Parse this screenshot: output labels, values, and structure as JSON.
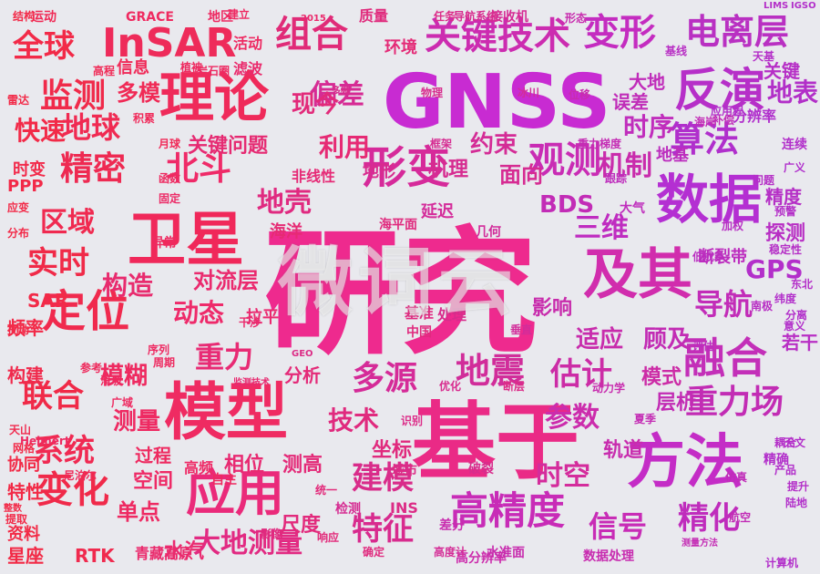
{
  "words": [
    {
      "text": "研究",
      "size": 150,
      "color": "#ee2a8e"
    },
    {
      "text": "GNSS",
      "size": 82,
      "color": "#c82bd2"
    },
    {
      "text": "基于",
      "size": 92,
      "color": "#ea2a86"
    },
    {
      "text": "卫星",
      "size": 64,
      "color": "#f0285a"
    },
    {
      "text": "模型",
      "size": 68,
      "color": "#ef2b62"
    },
    {
      "text": "理论",
      "size": 60,
      "color": "#ef2a5a"
    },
    {
      "text": "数据",
      "size": 58,
      "color": "#b42fd2"
    },
    {
      "text": "方法",
      "size": 64,
      "color": "#c42cc6"
    },
    {
      "text": "及其",
      "size": 60,
      "color": "#d12dad"
    },
    {
      "text": "应用",
      "size": 54,
      "color": "#ea2a7a"
    },
    {
      "text": "InSAR",
      "size": 44,
      "color": "#ee2b5a"
    },
    {
      "text": "形变",
      "size": 48,
      "color": "#d62a9a"
    },
    {
      "text": "反演",
      "size": 50,
      "color": "#b62fc8"
    },
    {
      "text": "融合",
      "size": 46,
      "color": "#c32fb8"
    },
    {
      "text": "定位",
      "size": 48,
      "color": "#f02a4e"
    },
    {
      "text": "高精度",
      "size": 42,
      "color": "#c82cb7"
    },
    {
      "text": "关键技术",
      "size": 40,
      "color": "#cc2cb0"
    },
    {
      "text": "组合",
      "size": 40,
      "color": "#e02b78"
    },
    {
      "text": "变形",
      "size": 40,
      "color": "#c42cc0"
    },
    {
      "text": "电离层",
      "size": 38,
      "color": "#b930c2"
    },
    {
      "text": "观测",
      "size": 40,
      "color": "#c92cb4"
    },
    {
      "text": "算法",
      "size": 38,
      "color": "#b02fcc"
    },
    {
      "text": "精密",
      "size": 36,
      "color": "#ee2a52"
    },
    {
      "text": "北斗",
      "size": 36,
      "color": "#ef2a68"
    },
    {
      "text": "监测",
      "size": 36,
      "color": "#f02a4a"
    },
    {
      "text": "地球",
      "size": 32,
      "color": "#f02a52"
    },
    {
      "text": "全球",
      "size": 34,
      "color": "#f22a48"
    },
    {
      "text": "变化",
      "size": 40,
      "color": "#f02a4a"
    },
    {
      "text": "重力场",
      "size": 36,
      "color": "#c22cb4"
    },
    {
      "text": "地震",
      "size": 38,
      "color": "#d12d9a"
    },
    {
      "text": "多源",
      "size": 36,
      "color": "#d52b98"
    },
    {
      "text": "估计",
      "size": 34,
      "color": "#cc2ca6"
    },
    {
      "text": "建模",
      "size": 34,
      "color": "#d92c8a"
    },
    {
      "text": "特征",
      "size": 34,
      "color": "#d82b8e"
    },
    {
      "text": "精化",
      "size": 34,
      "color": "#bf2cbc"
    },
    {
      "text": "信号",
      "size": 32,
      "color": "#c82cb6"
    },
    {
      "text": "系统",
      "size": 34,
      "color": "#f02a52"
    },
    {
      "text": "联合",
      "size": 34,
      "color": "#f02a48"
    },
    {
      "text": "实时",
      "size": 34,
      "color": "#f02a48"
    },
    {
      "text": "区域",
      "size": 30,
      "color": "#f02a50"
    },
    {
      "text": "快速",
      "size": 28,
      "color": "#f22a48"
    },
    {
      "text": "重力",
      "size": 32,
      "color": "#e82b74"
    },
    {
      "text": "大地测量",
      "size": 30,
      "color": "#e22a82"
    },
    {
      "text": "三维",
      "size": 30,
      "color": "#bf2cc0"
    },
    {
      "text": "导航",
      "size": 32,
      "color": "#c22cb8"
    },
    {
      "text": "时空",
      "size": 30,
      "color": "#d42c9c"
    },
    {
      "text": "参数",
      "size": 30,
      "color": "#cc2cac"
    },
    {
      "text": "机制",
      "size": 30,
      "color": "#c92cac"
    },
    {
      "text": "构造",
      "size": 28,
      "color": "#e82b6e"
    },
    {
      "text": "动态",
      "size": 28,
      "color": "#ee2a6a"
    },
    {
      "text": "偏差",
      "size": 30,
      "color": "#d62b94"
    },
    {
      "text": "地表",
      "size": 28,
      "color": "#b22fc8"
    },
    {
      "text": "时序",
      "size": 28,
      "color": "#c02dbc"
    },
    {
      "text": "地壳",
      "size": 30,
      "color": "#e02a80"
    },
    {
      "text": "模糊",
      "size": 26,
      "color": "#ee2a60"
    },
    {
      "text": "技术",
      "size": 28,
      "color": "#e02a7e"
    },
    {
      "text": "测量",
      "size": 26,
      "color": "#ee2a62"
    },
    {
      "text": "利用",
      "size": 28,
      "color": "#e62a74"
    },
    {
      "text": "现今",
      "size": 26,
      "color": "#e22a7a"
    },
    {
      "text": "GPS",
      "size": 28,
      "color": "#b32fca"
    },
    {
      "text": "BDS",
      "size": 26,
      "color": "#c22cb6"
    },
    {
      "text": "适应",
      "size": 26,
      "color": "#c82cac"
    },
    {
      "text": "顾及",
      "size": 26,
      "color": "#c22cb4"
    },
    {
      "text": "约束",
      "size": 26,
      "color": "#d42c96"
    },
    {
      "text": "面向",
      "size": 24,
      "color": "#d62b92"
    },
    {
      "text": "机理",
      "size": 22,
      "color": "#d62c90"
    },
    {
      "text": "对流层",
      "size": 24,
      "color": "#ea2a6e"
    },
    {
      "text": "关键问题",
      "size": 22,
      "color": "#e62a72"
    },
    {
      "text": "多模",
      "size": 24,
      "color": "#f02a56"
    },
    {
      "text": "单点",
      "size": 24,
      "color": "#ee2a62"
    },
    {
      "text": "空间",
      "size": 22,
      "color": "#ee2a66"
    },
    {
      "text": "过程",
      "size": 20,
      "color": "#ee2a60"
    },
    {
      "text": "水汽",
      "size": 22,
      "color": "#ea2a70"
    },
    {
      "text": "相位",
      "size": 22,
      "color": "#e82a72"
    },
    {
      "text": "测高",
      "size": 22,
      "color": "#e42a78"
    },
    {
      "text": "坐标",
      "size": 22,
      "color": "#e02a7e"
    },
    {
      "text": "轨道",
      "size": 22,
      "color": "#c82cae"
    },
    {
      "text": "层析",
      "size": 22,
      "color": "#c22cb4"
    },
    {
      "text": "模式",
      "size": 22,
      "color": "#cc2ca6"
    },
    {
      "text": "探测",
      "size": 22,
      "color": "#b82fc4"
    },
    {
      "text": "精度",
      "size": 20,
      "color": "#b52fc6"
    },
    {
      "text": "RTK",
      "size": 20,
      "color": "#f02a4e"
    },
    {
      "text": "SAR",
      "size": 20,
      "color": "#f22a48"
    },
    {
      "text": "频率",
      "size": 20,
      "color": "#f22a48"
    },
    {
      "text": "构建",
      "size": 20,
      "color": "#f02a4c"
    },
    {
      "text": "特性",
      "size": 20,
      "color": "#f22a46"
    },
    {
      "text": "协同",
      "size": 18,
      "color": "#f22a46"
    },
    {
      "text": "星座",
      "size": 20,
      "color": "#f22a46"
    },
    {
      "text": "资料",
      "size": 18,
      "color": "#f22a46"
    },
    {
      "text": "尺度",
      "size": 22,
      "color": "#e22a7c"
    },
    {
      "text": "影响",
      "size": 22,
      "color": "#c82cac"
    },
    {
      "text": "若干",
      "size": 20,
      "color": "#b82fc4"
    },
    {
      "text": "拉平",
      "size": 18,
      "color": "#ea2a70"
    },
    {
      "text": "环境",
      "size": 18,
      "color": "#e42a76"
    },
    {
      "text": "信息",
      "size": 18,
      "color": "#f02a58"
    },
    {
      "text": "时变",
      "size": 18,
      "color": "#f22a4a"
    },
    {
      "text": "PPP",
      "size": 18,
      "color": "#f22a48"
    },
    {
      "text": "分析",
      "size": 20,
      "color": "#e42a78"
    },
    {
      "text": "活动",
      "size": 16,
      "color": "#ee2a62"
    },
    {
      "text": "滤波",
      "size": 16,
      "color": "#ea2a6c"
    },
    {
      "text": "高频",
      "size": 16,
      "color": "#ee2a66"
    },
    {
      "text": "自主",
      "size": 14,
      "color": "#ee2a60"
    },
    {
      "text": "青藏高原",
      "size": 16,
      "color": "#ea2a6c"
    },
    {
      "text": "误差",
      "size": 20,
      "color": "#c02db8"
    },
    {
      "text": "大地",
      "size": 20,
      "color": "#c02cba"
    },
    {
      "text": "分辨率",
      "size": 16,
      "color": "#b02fcc"
    },
    {
      "text": "非线性",
      "size": 16,
      "color": "#e62a76"
    },
    {
      "text": "海洋",
      "size": 18,
      "color": "#e62a74"
    },
    {
      "text": "延迟",
      "size": 18,
      "color": "#d42c9a"
    },
    {
      "text": "断裂带",
      "size": 18,
      "color": "#bc2cbe"
    },
    {
      "text": "高分辨率",
      "size": 14,
      "color": "#cc2cac"
    },
    {
      "text": "数据处理",
      "size": 14,
      "color": "#c82cb0"
    },
    {
      "text": "地形",
      "size": 18,
      "color": "#d82c8e"
    },
    {
      "text": "检测",
      "size": 14,
      "color": "#d62c92"
    },
    {
      "text": "破裂",
      "size": 14,
      "color": "#d82c8c"
    },
    {
      "text": "城市",
      "size": 14,
      "color": "#dc2c86"
    },
    {
      "text": "差分",
      "size": 14,
      "color": "#c82cae"
    },
    {
      "text": "海平面",
      "size": 14,
      "color": "#e02a7e"
    },
    {
      "text": "几何",
      "size": 14,
      "color": "#d22c9a"
    },
    {
      "text": "中国",
      "size": 14,
      "color": "#e02a7e"
    },
    {
      "text": "基准",
      "size": 16,
      "color": "#e02a80"
    },
    {
      "text": "处理",
      "size": 16,
      "color": "#d82c8c"
    },
    {
      "text": "连续",
      "size": 14,
      "color": "#b22fca"
    },
    {
      "text": "地基",
      "size": 18,
      "color": "#bc2dbe"
    },
    {
      "text": "关键",
      "size": 20,
      "color": "#b62fc6"
    },
    {
      "text": "GRACE",
      "size": 14,
      "color": "#ef2a60"
    },
    {
      "text": "运动",
      "size": 14,
      "color": "#f02a56"
    },
    {
      "text": "地区",
      "size": 14,
      "color": "#ee2a62"
    },
    {
      "text": "建立",
      "size": 12,
      "color": "#ee2a62"
    },
    {
      "text": "质量",
      "size": 16,
      "color": "#e02a7c"
    },
    {
      "text": "接收机",
      "size": 14,
      "color": "#d62b94"
    },
    {
      "text": "导航系统",
      "size": 12,
      "color": "#d82c8e"
    },
    {
      "text": "任务",
      "size": 12,
      "color": "#dc2c88"
    },
    {
      "text": "形态",
      "size": 12,
      "color": "#c82cae"
    },
    {
      "text": "基线",
      "size": 12,
      "color": "#b82fc4"
    },
    {
      "text": "天基",
      "size": 12,
      "color": "#b42fc8"
    },
    {
      "text": "应用程",
      "size": 12,
      "color": "#b22fca"
    },
    {
      "text": "高程",
      "size": 12,
      "color": "#f02a56"
    },
    {
      "text": "结构",
      "size": 12,
      "color": "#f22a48"
    },
    {
      "text": "函数",
      "size": 12,
      "color": "#ee2a60"
    },
    {
      "text": "固定",
      "size": 12,
      "color": "#ec2a66"
    },
    {
      "text": "月球",
      "size": 12,
      "color": "#f02a58"
    },
    {
      "text": "积累",
      "size": 12,
      "color": "#f02a5a"
    },
    {
      "text": "植被",
      "size": 12,
      "color": "#ee2a60"
    },
    {
      "text": "岩石圈",
      "size": 12,
      "color": "#ee2a62"
    },
    {
      "text": "物理",
      "size": 12,
      "color": "#d82c8e"
    },
    {
      "text": "冰川",
      "size": 12,
      "color": "#d22c9a"
    },
    {
      "text": "位移",
      "size": 12,
      "color": "#c82cae"
    },
    {
      "text": "重力梯度",
      "size": 12,
      "color": "#c42cb4"
    },
    {
      "text": "跟踪",
      "size": 12,
      "color": "#be2dbc"
    },
    {
      "text": "问题",
      "size": 12,
      "color": "#b52fc6"
    },
    {
      "text": "广义",
      "size": 12,
      "color": "#b02fcc"
    },
    {
      "text": "框架",
      "size": 12,
      "color": "#d62c92"
    },
    {
      "text": "海岸",
      "size": 12,
      "color": "#c22cb6"
    },
    {
      "text": "补偿",
      "size": 12,
      "color": "#c02db8"
    },
    {
      "text": "大气",
      "size": 14,
      "color": "#bf2dbc"
    },
    {
      "text": "预警",
      "size": 12,
      "color": "#b42fc8"
    },
    {
      "text": "精确",
      "size": 14,
      "color": "#b22fca"
    },
    {
      "text": "产品",
      "size": 12,
      "color": "#b22fca"
    },
    {
      "text": "天文",
      "size": 12,
      "color": "#b22fca"
    },
    {
      "text": "耦合",
      "size": 12,
      "color": "#b42fc8"
    },
    {
      "text": "提升",
      "size": 12,
      "color": "#b42fc8"
    },
    {
      "text": "陆地",
      "size": 12,
      "color": "#b22fca"
    },
    {
      "text": "计算机",
      "size": 12,
      "color": "#b22fca"
    },
    {
      "text": "航空",
      "size": 12,
      "color": "#c22cb6"
    },
    {
      "text": "测量方法",
      "size": 10,
      "color": "#c42cb4"
    },
    {
      "text": "水准面",
      "size": 14,
      "color": "#c82cae"
    },
    {
      "text": "高度计",
      "size": 12,
      "color": "#d42c96"
    },
    {
      "text": "确定",
      "size": 12,
      "color": "#e02a7e"
    },
    {
      "text": "响应",
      "size": 12,
      "color": "#e22a7a"
    },
    {
      "text": "影像",
      "size": 12,
      "color": "#e02a7e"
    },
    {
      "text": "统一",
      "size": 12,
      "color": "#e22a7a"
    },
    {
      "text": "Helmert",
      "size": 12,
      "color": "#ee2a60"
    },
    {
      "text": "网格",
      "size": 12,
      "color": "#f22a48"
    },
    {
      "text": "整数",
      "size": 10,
      "color": "#f22a48"
    },
    {
      "text": "提取",
      "size": 12,
      "color": "#f22a48"
    },
    {
      "text": "天山",
      "size": 12,
      "color": "#f02a4e"
    },
    {
      "text": "周期",
      "size": 12,
      "color": "#ee2a60"
    },
    {
      "text": "异常",
      "size": 14,
      "color": "#ee2a60"
    },
    {
      "text": "序列",
      "size": 12,
      "color": "#ee2a62"
    },
    {
      "text": "监测技术",
      "size": 10,
      "color": "#e82a70"
    },
    {
      "text": "干涉",
      "size": 12,
      "color": "#ea2a6c"
    },
    {
      "text": "加权",
      "size": 12,
      "color": "#b82fc4"
    },
    {
      "text": "低成本",
      "size": 12,
      "color": "#ba2ec0"
    },
    {
      "text": "稳定性",
      "size": 12,
      "color": "#b52fc6"
    },
    {
      "text": "滑坡",
      "size": 12,
      "color": "#ee2a60"
    },
    {
      "text": "应变",
      "size": 12,
      "color": "#f22a48"
    },
    {
      "text": "分布",
      "size": 12,
      "color": "#f22a48"
    },
    {
      "text": "扰动",
      "size": 12,
      "color": "#f22a48"
    },
    {
      "text": "雷达",
      "size": 12,
      "color": "#f22a48"
    },
    {
      "text": "尼泊尔",
      "size": 12,
      "color": "#ee2a5a"
    },
    {
      "text": "参考",
      "size": 12,
      "color": "#ee2a5c"
    },
    {
      "text": "广域",
      "size": 12,
      "color": "#ee2a60"
    },
    {
      "text": "2015",
      "size": 10,
      "color": "#ea2a6c"
    },
    {
      "text": "GEO",
      "size": 10,
      "color": "#dc2c86"
    },
    {
      "text": "INS",
      "size": 16,
      "color": "#dc2c86"
    },
    {
      "text": "多频",
      "size": 10,
      "color": "#d82c8c"
    },
    {
      "text": "识别",
      "size": 12,
      "color": "#dc2c88"
    },
    {
      "text": "优化",
      "size": 12,
      "color": "#d82c8e"
    },
    {
      "text": "断层",
      "size": 12,
      "color": "#dc2c88"
    },
    {
      "text": "垂直",
      "size": 12,
      "color": "#d22c9a"
    },
    {
      "text": "动力学",
      "size": 12,
      "color": "#c82cae"
    },
    {
      "text": "夏季",
      "size": 12,
      "color": "#c42cb4"
    },
    {
      "text": "仿真",
      "size": 12,
      "color": "#c02db8"
    },
    {
      "text": "评估",
      "size": 12,
      "color": "#bc2dbe"
    },
    {
      "text": "南极",
      "size": 12,
      "color": "#b82fc4"
    },
    {
      "text": "东北",
      "size": 12,
      "color": "#b42fc8"
    },
    {
      "text": "分离",
      "size": 12,
      "color": "#b22fca"
    },
    {
      "text": "意义",
      "size": 12,
      "color": "#b22fca"
    },
    {
      "text": "纬度",
      "size": 12,
      "color": "#b22fca"
    },
    {
      "text": "LIMS",
      "size": 10,
      "color": "#b42fc8"
    },
    {
      "text": "IGSO",
      "size": 10,
      "color": "#b22fca"
    }
  ],
  "watermark": "微词云"
}
